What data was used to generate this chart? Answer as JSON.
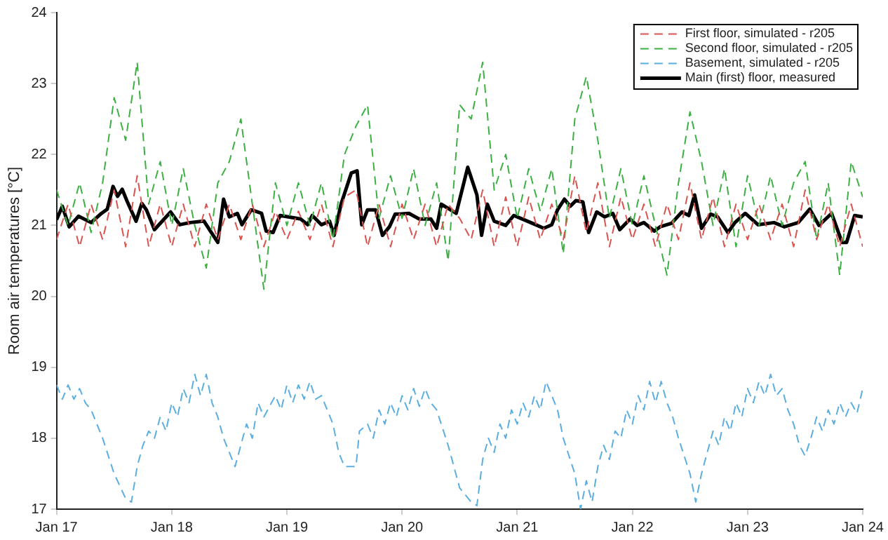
{
  "chart_data": {
    "type": "line",
    "ylabel": "Room air temperatures [°C]",
    "xlim": [
      "--01-17",
      "--01-24"
    ],
    "ylim": [
      17,
      24
    ],
    "xticks": [
      {
        "value": "--01-17",
        "label": "Jan 17"
      },
      {
        "value": "--01-18",
        "label": "Jan 18"
      },
      {
        "value": "--01-19",
        "label": "Jan 19"
      },
      {
        "value": "--01-20",
        "label": "Jan 20"
      },
      {
        "value": "--01-21",
        "label": "Jan 21"
      },
      {
        "value": "--01-22",
        "label": "Jan 22"
      },
      {
        "value": "--01-23",
        "label": "Jan 23"
      },
      {
        "value": "--01-24",
        "label": "Jan 24"
      }
    ],
    "yticks": [
      17,
      18,
      19,
      20,
      21,
      22,
      23,
      24
    ],
    "grid": false,
    "legend": "top right",
    "marker": "none",
    "x": [
      "--01-17T00:00",
      "--01-17T02:24",
      "--01-17T04:48",
      "--01-17T07:12",
      "--01-17T09:36",
      "--01-17T12:00",
      "--01-17T14:24",
      "--01-17T16:48",
      "--01-17T19:12",
      "--01-17T21:36",
      "--01-18T00:00",
      "--01-18T02:24",
      "--01-18T04:48",
      "--01-18T07:12",
      "--01-18T09:36",
      "--01-18T12:00",
      "--01-18T14:24",
      "--01-18T16:48",
      "--01-18T19:12",
      "--01-18T21:36",
      "--01-19T00:00",
      "--01-19T02:24",
      "--01-19T04:48",
      "--01-19T07:12",
      "--01-19T09:36",
      "--01-19T12:00",
      "--01-19T14:24",
      "--01-19T16:48",
      "--01-19T19:12",
      "--01-19T21:36",
      "--01-20T00:00",
      "--01-20T02:24",
      "--01-20T04:48",
      "--01-20T07:12",
      "--01-20T09:36",
      "--01-20T12:00",
      "--01-20T14:24",
      "--01-20T16:48",
      "--01-20T19:12",
      "--01-20T21:36",
      "--01-21T00:00",
      "--01-21T02:24",
      "--01-21T04:48",
      "--01-21T07:12",
      "--01-21T09:36",
      "--01-21T12:00",
      "--01-21T14:24",
      "--01-21T16:48",
      "--01-21T19:12",
      "--01-21T21:36",
      "--01-22T00:00",
      "--01-22T02:24",
      "--01-22T04:48",
      "--01-22T07:12",
      "--01-22T09:36",
      "--01-22T12:00",
      "--01-22T14:24",
      "--01-22T16:48",
      "--01-22T19:12",
      "--01-22T21:36",
      "--01-23T00:00",
      "--01-23T02:24",
      "--01-23T04:48",
      "--01-23T07:12",
      "--01-23T09:36",
      "--01-23T12:00",
      "--01-23T14:24",
      "--01-23T16:48",
      "--01-23T19:12",
      "--01-23T21:36",
      "--01-24T00:00"
    ],
    "series": [
      {
        "name": "First floor, simulated - r205",
        "color": "#d9534f",
        "line_style": "dashed",
        "values": [
          20.8,
          21.3,
          20.7,
          21.3,
          20.8,
          21.5,
          20.7,
          21.7,
          20.7,
          21.3,
          20.7,
          21.3,
          20.7,
          21.3,
          20.8,
          21.3,
          20.8,
          21.3,
          20.7,
          21.2,
          20.8,
          21.2,
          20.8,
          21.3,
          20.7,
          21.4,
          21.5,
          20.7,
          21.3,
          20.7,
          21.3,
          20.8,
          21.3,
          20.7,
          21.3,
          21.1,
          20.8,
          21.5,
          20.7,
          21.4,
          20.7,
          21.4,
          20.8,
          21.3,
          20.8,
          21.7,
          20.9,
          21.6,
          20.7,
          21.4,
          20.8,
          21.3,
          20.7,
          21.3,
          20.8,
          21.6,
          20.8,
          21.4,
          20.7,
          21.3,
          20.8,
          21.3,
          20.8,
          21.3,
          20.7,
          21.5,
          20.8,
          21.3,
          20.7,
          21.3,
          20.7
        ]
      },
      {
        "name": "Second floor, simulated - r205",
        "color": "#3cb043",
        "line_style": "dashed",
        "values": [
          21.5,
          21.0,
          21.6,
          20.9,
          21.6,
          22.8,
          22.2,
          23.3,
          21.3,
          21.9,
          21.0,
          21.8,
          21.0,
          20.4,
          21.6,
          21.9,
          22.5,
          21.3,
          20.1,
          21.6,
          21.0,
          21.6,
          21.0,
          21.6,
          20.8,
          22.0,
          22.4,
          22.7,
          21.1,
          21.7,
          21.1,
          21.8,
          21.0,
          21.6,
          20.5,
          22.7,
          22.5,
          23.3,
          21.5,
          22.0,
          21.1,
          21.8,
          21.2,
          21.8,
          20.6,
          22.5,
          23.1,
          22.2,
          21.1,
          21.8,
          21.0,
          21.7,
          21.0,
          20.3,
          21.6,
          22.6,
          21.9,
          21.0,
          21.8,
          20.7,
          21.7,
          21.0,
          21.7,
          21.0,
          21.6,
          21.9,
          20.8,
          21.6,
          20.3,
          21.9,
          21.4
        ]
      },
      {
        "name": "Basement, simulated - r205",
        "color": "#5aaee0",
        "line_style": "dashed",
        "x": [
          "--01-17T00:00",
          "--01-17T01:12",
          "--01-17T02:24",
          "--01-17T03:36",
          "--01-17T04:48",
          "--01-17T06:00",
          "--01-17T07:12",
          "--01-17T09:36",
          "--01-17T12:00",
          "--01-17T14:24",
          "--01-17T15:36",
          "--01-17T16:48",
          "--01-17T18:00",
          "--01-17T19:12",
          "--01-17T20:24",
          "--01-17T21:36",
          "--01-17T22:48",
          "--01-18T00:00",
          "--01-18T01:12",
          "--01-18T02:24",
          "--01-18T03:36",
          "--01-18T04:48",
          "--01-18T06:00",
          "--01-18T07:12",
          "--01-18T08:24",
          "--01-18T09:36",
          "--01-18T10:48",
          "--01-18T13:12",
          "--01-18T14:24",
          "--01-18T15:36",
          "--01-18T16:48",
          "--01-18T18:00",
          "--01-18T19:12",
          "--01-18T21:36",
          "--01-18T22:48",
          "--01-19T00:00",
          "--01-19T01:12",
          "--01-19T02:24",
          "--01-19T03:36",
          "--01-19T04:48",
          "--01-19T06:00",
          "--01-19T07:12",
          "--01-19T08:24",
          "--01-19T09:36",
          "--01-19T10:48",
          "--01-19T12:00",
          "--01-19T14:24",
          "--01-19T15:07",
          "--01-19T16:48",
          "--01-19T18:00",
          "--01-19T19:12",
          "--01-19T20:24",
          "--01-19T21:36",
          "--01-19T22:48",
          "--01-20T00:00",
          "--01-20T01:12",
          "--01-20T02:24",
          "--01-20T03:36",
          "--01-20T04:48",
          "--01-20T06:00",
          "--01-20T07:12",
          "--01-20T09:36",
          "--01-20T12:00",
          "--01-20T14:24",
          "--01-20T15:36",
          "--01-20T16:48",
          "--01-20T18:00",
          "--01-20T19:12",
          "--01-20T20:24",
          "--01-20T21:36",
          "--01-20T22:48",
          "--01-21T00:00",
          "--01-21T01:12",
          "--01-21T02:24",
          "--01-21T03:36",
          "--01-21T04:48",
          "--01-21T06:00",
          "--01-21T07:12",
          "--01-21T08:24",
          "--01-21T09:36",
          "--01-21T12:00",
          "--01-21T13:12",
          "--01-21T14:24",
          "--01-21T15:36",
          "--01-21T16:48",
          "--01-21T18:00",
          "--01-21T19:12",
          "--01-21T20:24",
          "--01-21T21:36",
          "--01-21T22:48",
          "--01-22T00:00",
          "--01-22T01:12",
          "--01-22T02:24",
          "--01-22T03:36",
          "--01-22T04:48",
          "--01-22T06:00",
          "--01-22T07:12",
          "--01-22T08:24",
          "--01-22T09:36",
          "--01-22T12:00",
          "--01-22T13:12",
          "--01-22T14:24",
          "--01-22T15:36",
          "--01-22T16:48",
          "--01-22T18:00",
          "--01-22T19:12",
          "--01-22T20:24",
          "--01-22T21:36",
          "--01-22T22:48",
          "--01-23T00:00",
          "--01-23T01:12",
          "--01-23T02:24",
          "--01-23T03:36",
          "--01-23T04:48",
          "--01-23T06:00",
          "--01-23T07:12",
          "--01-23T08:24",
          "--01-23T09:36",
          "--01-23T10:48",
          "--01-23T12:00",
          "--01-23T13:12",
          "--01-23T14:24",
          "--01-23T15:36",
          "--01-23T16:48",
          "--01-23T18:00",
          "--01-23T19:12",
          "--01-23T20:24",
          "--01-23T21:36",
          "--01-23T22:48",
          "--01-24T00:00"
        ],
        "values": [
          18.75,
          18.55,
          18.75,
          18.55,
          18.7,
          18.5,
          18.4,
          18.0,
          17.5,
          17.15,
          17.1,
          17.6,
          17.9,
          18.1,
          18.0,
          18.3,
          18.1,
          18.5,
          18.3,
          18.7,
          18.5,
          18.9,
          18.6,
          18.9,
          18.5,
          18.3,
          18.0,
          17.6,
          17.9,
          18.2,
          18.0,
          18.5,
          18.3,
          18.6,
          18.4,
          18.75,
          18.5,
          18.75,
          18.55,
          18.8,
          18.55,
          18.6,
          18.4,
          18.2,
          17.8,
          17.6,
          17.6,
          18.1,
          18.2,
          18.0,
          18.4,
          18.2,
          18.5,
          18.3,
          18.6,
          18.4,
          18.7,
          18.45,
          18.7,
          18.5,
          18.4,
          17.9,
          17.3,
          17.1,
          17.05,
          17.7,
          18.0,
          17.8,
          18.2,
          18.0,
          18.4,
          18.2,
          18.5,
          18.3,
          18.6,
          18.4,
          18.8,
          18.6,
          18.4,
          18.0,
          17.5,
          17.0,
          17.4,
          17.1,
          17.6,
          17.9,
          17.7,
          18.1,
          18.0,
          18.4,
          18.2,
          18.6,
          18.4,
          18.8,
          18.5,
          18.8,
          18.5,
          18.3,
          18.0,
          17.5,
          17.1,
          17.5,
          17.8,
          18.1,
          17.9,
          18.3,
          18.1,
          18.5,
          18.3,
          18.7,
          18.5,
          18.8,
          18.6,
          18.9,
          18.6,
          18.7,
          18.4,
          18.2,
          17.9,
          17.75,
          18.0,
          18.3,
          18.1,
          18.4,
          18.2,
          18.5,
          18.3,
          18.5,
          18.35,
          18.7
        ]
      },
      {
        "name": "Main (first) floor, measured",
        "color": "#000000",
        "line_style": "solid",
        "x": [
          "--01-17T00:00",
          "--01-17T01:12",
          "--01-17T02:38",
          "--01-17T04:34",
          "--01-17T07:12",
          "--01-17T09:22",
          "--01-17T10:34",
          "--01-17T11:46",
          "--01-17T12:43",
          "--01-17T13:41",
          "--01-17T14:38",
          "--01-17T16:34",
          "--01-17T17:46",
          "--01-17T18:43",
          "--01-17T20:24",
          "--01-17T23:46",
          "--01-18T01:41",
          "--01-18T03:50",
          "--01-18T06:43",
          "--01-18T09:36",
          "--01-18T10:48",
          "--01-18T12:00",
          "--01-18T13:41",
          "--01-18T14:38",
          "--01-18T16:34",
          "--01-18T18:43",
          "--01-18T19:41",
          "--01-18T21:07",
          "--01-18T22:34",
          "--01-19T02:53",
          "--01-19T04:19",
          "--01-19T05:17",
          "--01-19T07:12",
          "--01-19T08:53",
          "--01-19T09:50",
          "--01-19T11:17",
          "--01-19T13:26",
          "--01-19T14:38",
          "--01-19T15:36",
          "--01-19T16:48",
          "--01-19T18:29",
          "--01-19T19:55",
          "--01-19T21:22",
          "--01-19T22:34",
          "--01-19T23:31",
          "--01-20T01:26",
          "--01-20T03:36",
          "--01-20T06:00",
          "--01-20T07:12",
          "--01-20T08:10",
          "--01-20T10:05",
          "--01-20T11:17",
          "--01-20T13:41",
          "--01-20T15:36",
          "--01-20T16:34",
          "--01-20T17:46",
          "--01-20T19:12",
          "--01-20T21:36",
          "--01-20T23:17",
          "--01-21T01:26",
          "--01-21T03:50",
          "--01-21T05:31",
          "--01-21T07:12",
          "--01-21T08:24",
          "--01-21T09:50",
          "--01-21T11:02",
          "--01-21T12:14",
          "--01-21T13:41",
          "--01-21T14:53",
          "--01-21T16:34",
          "--01-21T18:14",
          "--01-21T19:55",
          "--01-21T21:22",
          "--01-21T23:31",
          "--01-22T00:58",
          "--01-22T02:24",
          "--01-22T04:34",
          "--01-22T05:46",
          "--01-22T08:10",
          "--01-22T10:19",
          "--01-22T11:46",
          "--01-22T12:58",
          "--01-22T14:24",
          "--01-22T16:19",
          "--01-22T17:46",
          "--01-22T19:55",
          "--01-22T21:22",
          "--01-22T23:31",
          "--01-23T02:10",
          "--01-23T05:31",
          "--01-23T07:41",
          "--01-23T10:34",
          "--01-23T12:58",
          "--01-23T14:53",
          "--01-23T17:31",
          "--01-23T19:41",
          "--01-23T20:38",
          "--01-23T22:19",
          "--01-24T00:00"
        ],
        "values": [
          21.08,
          21.27,
          20.98,
          21.13,
          21.04,
          21.17,
          21.23,
          21.55,
          21.41,
          21.51,
          21.35,
          21.06,
          21.31,
          21.22,
          20.94,
          21.19,
          21.01,
          21.04,
          21.06,
          20.76,
          21.37,
          21.12,
          21.17,
          21.01,
          21.22,
          21.17,
          20.92,
          20.9,
          21.14,
          21.09,
          21.01,
          21.14,
          21.01,
          21.06,
          20.86,
          21.3,
          21.74,
          21.77,
          21.01,
          21.22,
          21.22,
          20.86,
          20.98,
          21.16,
          21.16,
          21.17,
          21.09,
          21.09,
          20.96,
          21.3,
          21.22,
          21.17,
          21.82,
          21.43,
          20.86,
          21.3,
          21.06,
          21.0,
          21.14,
          21.08,
          21.01,
          20.96,
          21.01,
          21.22,
          21.37,
          21.27,
          21.35,
          21.33,
          20.9,
          21.19,
          21.12,
          21.17,
          20.94,
          21.09,
          21.0,
          21.04,
          20.92,
          20.98,
          21.03,
          21.19,
          21.14,
          21.43,
          20.96,
          21.16,
          21.12,
          20.9,
          21.04,
          21.17,
          21.01,
          21.04,
          20.98,
          21.04,
          21.23,
          21.0,
          21.17,
          20.76,
          20.76,
          21.14,
          21.12
        ]
      }
    ]
  }
}
